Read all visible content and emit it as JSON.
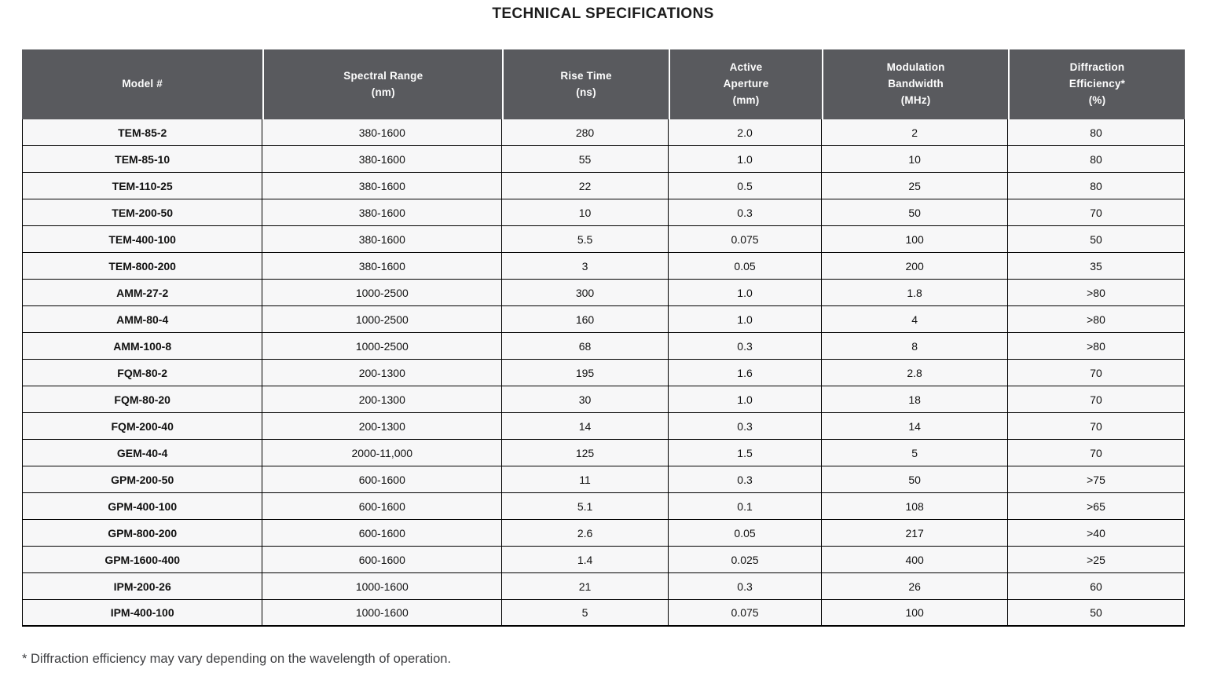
{
  "page": {
    "title": "TECHNICAL SPECIFICATIONS",
    "footnote": "* Diffraction efficiency may vary depending on the wavelength of operation."
  },
  "colors": {
    "header_bg": "#595a5e",
    "header_text": "#fdfdfd",
    "row_bg": "#f7f7f8",
    "border": "#000000",
    "footnote_text": "#3f4043"
  },
  "table": {
    "columns": [
      "Model #",
      "Spectral Range\n(nm)",
      "Rise Time\n(ns)",
      "Active\nAperture\n(mm)",
      "Modulation\nBandwidth\n(MHz)",
      "Diffraction\nEfficiency*\n(%)"
    ],
    "rows": [
      [
        "TEM-85-2",
        "380-1600",
        "280",
        "2.0",
        "2",
        "80"
      ],
      [
        "TEM-85-10",
        "380-1600",
        "55",
        "1.0",
        "10",
        "80"
      ],
      [
        "TEM-110-25",
        "380-1600",
        "22",
        "0.5",
        "25",
        "80"
      ],
      [
        "TEM-200-50",
        "380-1600",
        "10",
        "0.3",
        "50",
        "70"
      ],
      [
        "TEM-400-100",
        "380-1600",
        "5.5",
        "0.075",
        "100",
        "50"
      ],
      [
        "TEM-800-200",
        "380-1600",
        "3",
        "0.05",
        "200",
        "35"
      ],
      [
        "AMM-27-2",
        "1000-2500",
        "300",
        "1.0",
        "1.8",
        ">80"
      ],
      [
        "AMM-80-4",
        "1000-2500",
        "160",
        "1.0",
        "4",
        ">80"
      ],
      [
        "AMM-100-8",
        "1000-2500",
        "68",
        "0.3",
        "8",
        ">80"
      ],
      [
        "FQM-80-2",
        "200-1300",
        "195",
        "1.6",
        "2.8",
        "70"
      ],
      [
        "FQM-80-20",
        "200-1300",
        "30",
        "1.0",
        "18",
        "70"
      ],
      [
        "FQM-200-40",
        "200-1300",
        "14",
        "0.3",
        "14",
        "70"
      ],
      [
        "GEM-40-4",
        "2000-11,000",
        "125",
        "1.5",
        "5",
        "70"
      ],
      [
        "GPM-200-50",
        "600-1600",
        "11",
        "0.3",
        "50",
        ">75"
      ],
      [
        "GPM-400-100",
        "600-1600",
        "5.1",
        "0.1",
        "108",
        ">65"
      ],
      [
        "GPM-800-200",
        "600-1600",
        "2.6",
        "0.05",
        "217",
        ">40"
      ],
      [
        "GPM-1600-400",
        "600-1600",
        "1.4",
        "0.025",
        "400",
        ">25"
      ],
      [
        "IPM-200-26",
        "1000-1600",
        "21",
        "0.3",
        "26",
        "60"
      ],
      [
        "IPM-400-100",
        "1000-1600",
        "5",
        "0.075",
        "100",
        "50"
      ]
    ]
  }
}
